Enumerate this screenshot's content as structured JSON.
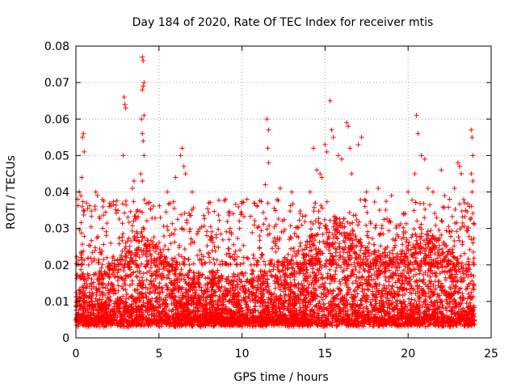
{
  "chart_data": {
    "type": "scatter",
    "title": "Day 184 of 2020, Rate Of TEC Index for receiver mtis",
    "xlabel": "GPS time / hours",
    "ylabel": "ROTI / TECUs",
    "xlim": [
      0,
      25
    ],
    "ylim": [
      0,
      0.08
    ],
    "grid": true,
    "marker": "+",
    "color": "#ff0000",
    "x_ticks": [
      0,
      5,
      10,
      15,
      20,
      25
    ],
    "x_tick_labels": [
      "0",
      "5",
      "10",
      "15",
      "20",
      "25"
    ],
    "y_ticks": [
      0,
      0.01,
      0.02,
      0.03,
      0.04,
      0.05,
      0.06,
      0.07,
      0.08
    ],
    "y_tick_labels": [
      "0",
      "0.01",
      "0.02",
      "0.03",
      "0.04",
      "0.05",
      "0.06",
      "0.07",
      "0.08"
    ],
    "dense_band": {
      "x_range": [
        0,
        24
      ],
      "base_level": 0.01,
      "typical_range": [
        0.004,
        0.025
      ]
    },
    "outliers": [
      [
        0.1,
        0.038
      ],
      [
        0.2,
        0.04
      ],
      [
        0.3,
        0.039
      ],
      [
        0.4,
        0.055
      ],
      [
        0.45,
        0.056
      ],
      [
        0.5,
        0.051
      ],
      [
        0.35,
        0.044
      ],
      [
        1.2,
        0.04
      ],
      [
        1.3,
        0.039
      ],
      [
        2.0,
        0.036
      ],
      [
        2.9,
        0.066
      ],
      [
        2.95,
        0.064
      ],
      [
        3.0,
        0.063
      ],
      [
        2.85,
        0.05
      ],
      [
        3.4,
        0.041
      ],
      [
        3.5,
        0.043
      ],
      [
        4.0,
        0.077
      ],
      [
        4.05,
        0.076
      ],
      [
        4.1,
        0.07
      ],
      [
        4.05,
        0.069
      ],
      [
        4.0,
        0.068
      ],
      [
        4.1,
        0.061
      ],
      [
        3.95,
        0.06
      ],
      [
        4.0,
        0.056
      ],
      [
        4.05,
        0.054
      ],
      [
        4.1,
        0.05
      ],
      [
        3.9,
        0.045
      ],
      [
        4.0,
        0.043
      ],
      [
        5.5,
        0.04
      ],
      [
        6.0,
        0.044
      ],
      [
        6.3,
        0.05
      ],
      [
        6.4,
        0.052
      ],
      [
        6.5,
        0.047
      ],
      [
        6.6,
        0.045
      ],
      [
        7.0,
        0.04
      ],
      [
        8.0,
        0.037
      ],
      [
        9.0,
        0.038
      ],
      [
        10.3,
        0.038
      ],
      [
        11.5,
        0.06
      ],
      [
        11.6,
        0.057
      ],
      [
        11.55,
        0.052
      ],
      [
        11.6,
        0.048
      ],
      [
        11.4,
        0.042
      ],
      [
        12.3,
        0.041
      ],
      [
        13.0,
        0.04
      ],
      [
        14.1,
        0.04
      ],
      [
        14.3,
        0.052
      ],
      [
        14.5,
        0.046
      ],
      [
        14.7,
        0.045
      ],
      [
        14.8,
        0.044
      ],
      [
        15.0,
        0.053
      ],
      [
        15.1,
        0.051
      ],
      [
        15.3,
        0.065
      ],
      [
        15.4,
        0.057
      ],
      [
        15.5,
        0.055
      ],
      [
        15.8,
        0.05
      ],
      [
        16.0,
        0.049
      ],
      [
        16.3,
        0.059
      ],
      [
        16.4,
        0.058
      ],
      [
        16.5,
        0.052
      ],
      [
        16.6,
        0.045
      ],
      [
        17.0,
        0.053
      ],
      [
        17.2,
        0.055
      ],
      [
        17.5,
        0.04
      ],
      [
        18.2,
        0.041
      ],
      [
        19.0,
        0.039
      ],
      [
        20.0,
        0.04
      ],
      [
        20.5,
        0.061
      ],
      [
        20.6,
        0.056
      ],
      [
        20.4,
        0.045
      ],
      [
        20.8,
        0.05
      ],
      [
        21.0,
        0.049
      ],
      [
        21.2,
        0.041
      ],
      [
        21.5,
        0.04
      ],
      [
        22.0,
        0.046
      ],
      [
        22.2,
        0.039
      ],
      [
        22.5,
        0.038
      ],
      [
        22.8,
        0.041
      ],
      [
        23.0,
        0.048
      ],
      [
        23.1,
        0.047
      ],
      [
        23.2,
        0.045
      ],
      [
        23.4,
        0.037
      ],
      [
        23.7,
        0.036
      ],
      [
        23.8,
        0.057
      ],
      [
        23.85,
        0.055
      ],
      [
        23.9,
        0.05
      ],
      [
        23.8,
        0.045
      ],
      [
        23.9,
        0.043
      ],
      [
        23.85,
        0.04
      ]
    ]
  }
}
